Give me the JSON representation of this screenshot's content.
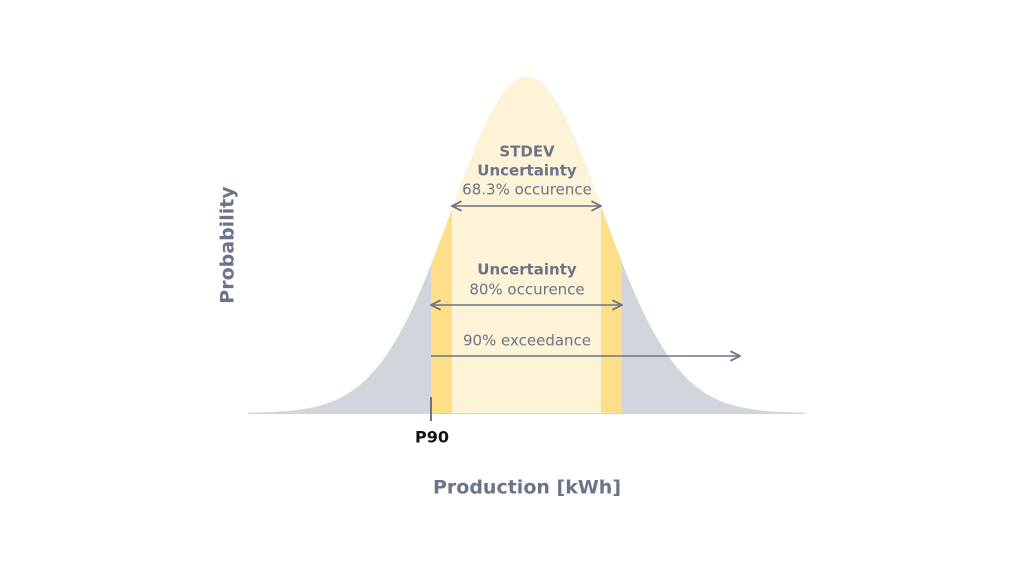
{
  "diagram": {
    "y_axis_label": "Probability",
    "x_axis_label": "Production [kWh]",
    "stdev": {
      "line1": "STDEV",
      "line2": "Uncertainty",
      "line3": "68.3% occurence"
    },
    "uncertainty": {
      "line1": "Uncertainty",
      "line2": "80% occurence"
    },
    "exceedance": "90% exceedance",
    "marker": "P90"
  }
}
